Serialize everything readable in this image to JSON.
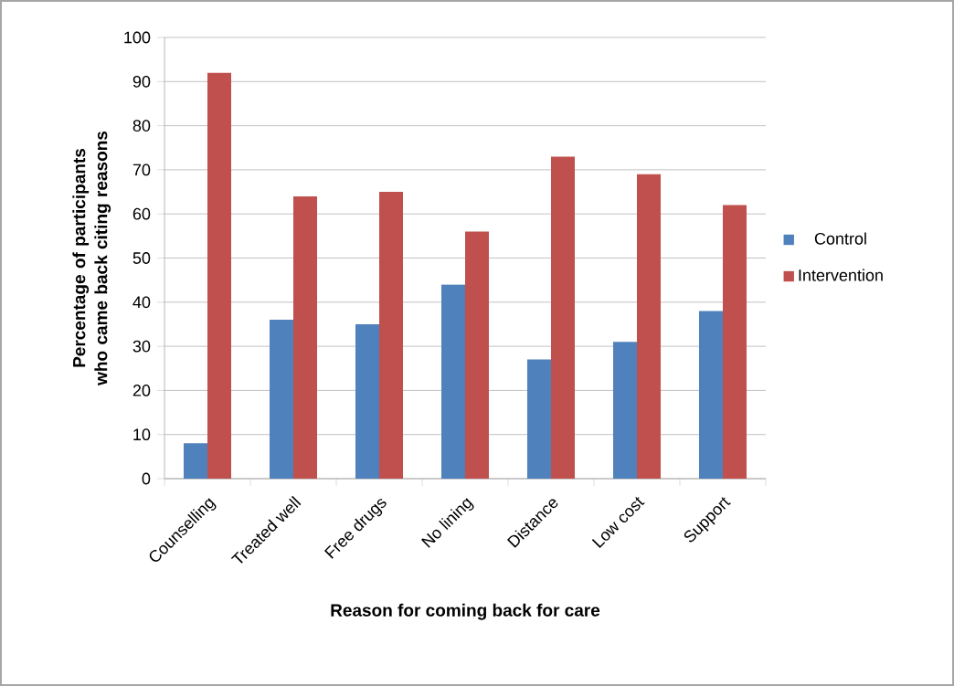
{
  "chart_data": {
    "type": "bar",
    "xlabel": "Reason for coming back for care",
    "ylabel": "Percentage of participants who came back citing reasons",
    "categories": [
      "Counselling",
      "Treated well",
      "Free drugs",
      "No lining",
      "Distance",
      "Low cost",
      "Support"
    ],
    "series": [
      {
        "name": "Control",
        "color": "#4f81bd",
        "values": [
          8,
          36,
          35,
          44,
          27,
          31,
          38
        ]
      },
      {
        "name": "Intervention",
        "color": "#c0504d",
        "values": [
          92,
          64,
          65,
          56,
          73,
          69,
          62
        ]
      }
    ],
    "ylim": [
      0,
      100
    ],
    "yticks": [
      0,
      10,
      20,
      30,
      40,
      50,
      60,
      70,
      80,
      90,
      100
    ],
    "grid": "y",
    "legend": "right"
  }
}
